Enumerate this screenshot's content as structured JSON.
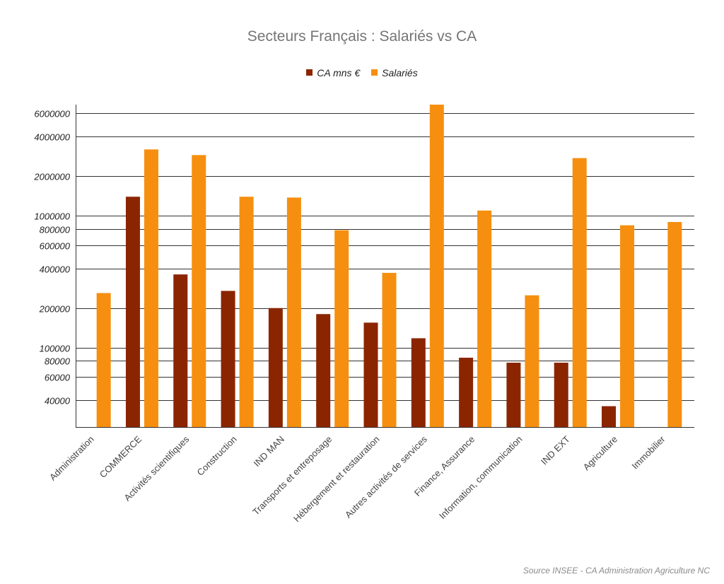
{
  "colors": {
    "ca": "#8B2500",
    "salaries": "#F68F0F",
    "grid": "#333333"
  },
  "chart_data": {
    "type": "bar",
    "title": "Secteurs Français : Salariés vs CA",
    "xlabel": "",
    "ylabel": "",
    "scale": "log",
    "ylim": [
      25000,
      7000000
    ],
    "yticks": [
      40000,
      60000,
      80000,
      100000,
      200000,
      400000,
      600000,
      800000,
      1000000,
      2000000,
      4000000,
      6000000
    ],
    "ytick_labels": [
      "40000",
      "60000",
      "80000",
      "100000",
      "200000",
      "400000",
      "600000",
      "800000",
      "1000000",
      "2000000",
      "4000000",
      "6000000"
    ],
    "legend_position": "top-center",
    "grid": true,
    "categories": [
      "Administration",
      "COMMERCE",
      "Activités scientifiques",
      "Construction",
      "IND MAN",
      "Transports et entreposage",
      "Hébergement et restauration",
      "Autres activités de services",
      "Finance, Assurance",
      "Information, communication",
      "IND EXT",
      "Agriculture",
      "Immobilier"
    ],
    "series": [
      {
        "name": "CA mns €",
        "color": "#8B2500",
        "values": [
          null,
          1400000,
          360000,
          270000,
          200000,
          180000,
          155000,
          118000,
          84000,
          77000,
          77000,
          36000,
          null
        ]
      },
      {
        "name": "Salariés",
        "color": "#F68F0F",
        "values": [
          260000,
          3200000,
          2900000,
          1400000,
          1380000,
          780000,
          370000,
          7000000,
          1100000,
          250000,
          2750000,
          850000,
          900000
        ]
      }
    ],
    "source": "Source INSEE - CA Administration Agriculture NC"
  }
}
